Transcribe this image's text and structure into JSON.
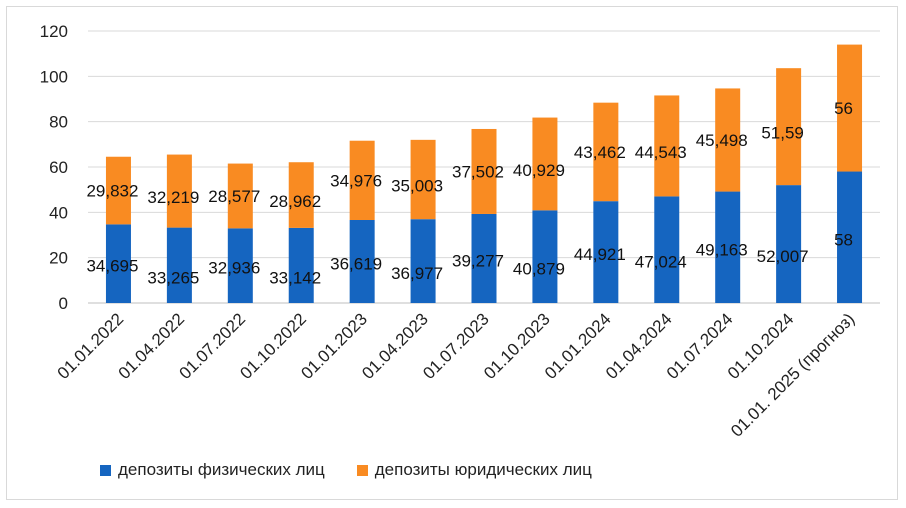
{
  "chart_data": {
    "type": "bar",
    "stacked": true,
    "title": "",
    "xlabel": "",
    "ylabel": "",
    "ylim": [
      0,
      120
    ],
    "yticks": [
      "0",
      "20",
      "40",
      "60",
      "80",
      "100",
      "120"
    ],
    "grid": true,
    "legend_position": "bottom",
    "categories": [
      "01.01.2022",
      "01.04.2022",
      "01.07.2022",
      "01.10.2022",
      "01.01.2023",
      "01.04.2023",
      "01.07.2023",
      "01.10.2023",
      "01.01.2024",
      "01.04.2024",
      "01.07.2024",
      "01.10.2024",
      "01.01. 2025 (прогноз)"
    ],
    "series": [
      {
        "name": "депозиты физических лиц",
        "color": "#1565C0",
        "values": [
          34.695,
          33.265,
          32.936,
          33.142,
          36.619,
          36.977,
          39.277,
          40.879,
          44.921,
          47.024,
          49.163,
          52.007,
          58
        ],
        "labels": [
          "34,695",
          "33,265",
          "32,936",
          "33,142",
          "36,619",
          "36,977",
          "39,277",
          "40,879",
          "44,921",
          "47,024",
          "49,163",
          "52,007",
          "58"
        ]
      },
      {
        "name": "депозиты юридических лиц",
        "color": "#F98B22",
        "values": [
          29.832,
          32.219,
          28.577,
          28.962,
          34.976,
          35.003,
          37.502,
          40.929,
          43.462,
          44.543,
          45.498,
          51.59,
          56
        ],
        "labels": [
          "29,832",
          "32,219",
          "28,577",
          "28,962",
          "34,976",
          "35,003",
          "37,502",
          "40,929",
          "43,462",
          "44,543",
          "45,498",
          "51,59",
          "56"
        ]
      }
    ]
  }
}
